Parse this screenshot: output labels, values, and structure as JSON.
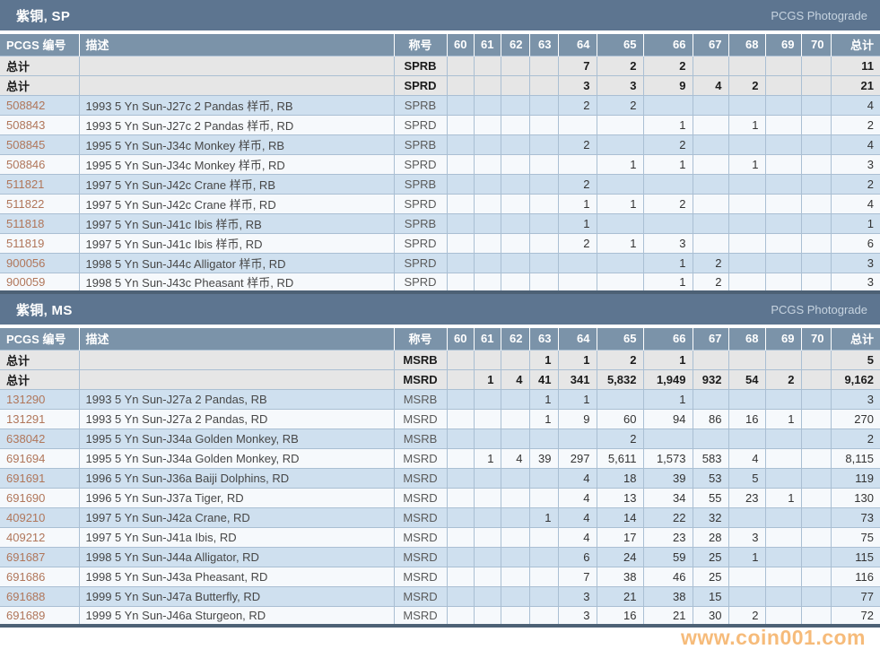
{
  "labels": {
    "photograde": "PCGS Photograde",
    "col_pcgs": "PCGS 编号",
    "col_desc": "描述",
    "col_designation": "称号",
    "col_total": "总计",
    "total_row": "总计"
  },
  "grade_columns": [
    "60",
    "61",
    "62",
    "63",
    "64",
    "65",
    "66",
    "67",
    "68",
    "69",
    "70"
  ],
  "watermark": {
    "text": "www.coin001.com",
    "color": "#f0922e"
  },
  "colors": {
    "band": "#5d7590",
    "header_row": "#7b93a9",
    "row_blue": "#cfe0ef",
    "row_white": "#f6f9fc",
    "total_row": "#e6e6e6",
    "cell_border": "#aabfd3",
    "link": "#b0765a",
    "bottom_bar": "#4d6175"
  },
  "sections": [
    {
      "title": "紫铜, SP",
      "totals": [
        {
          "designation": "SPRB",
          "counts": [
            "",
            "",
            "",
            "",
            "7",
            "2",
            "2",
            "",
            "",
            "",
            ""
          ],
          "total": "11"
        },
        {
          "designation": "SPRD",
          "counts": [
            "",
            "",
            "",
            "",
            "3",
            "3",
            "9",
            "4",
            "2",
            "",
            ""
          ],
          "total": "21"
        }
      ],
      "rows": [
        {
          "pcgs": "508842",
          "desc": "1993 5 Yn Sun-J27c 2 Pandas 样币, RB",
          "designation": "SPRB",
          "counts": [
            "",
            "",
            "",
            "",
            "2",
            "2",
            "",
            "",
            "",
            "",
            ""
          ],
          "total": "4"
        },
        {
          "pcgs": "508843",
          "desc": "1993 5 Yn Sun-J27c 2 Pandas 样币, RD",
          "designation": "SPRD",
          "counts": [
            "",
            "",
            "",
            "",
            "",
            "",
            "1",
            "",
            "1",
            "",
            ""
          ],
          "total": "2"
        },
        {
          "pcgs": "508845",
          "desc": "1995 5 Yn Sun-J34c Monkey 样币, RB",
          "designation": "SPRB",
          "counts": [
            "",
            "",
            "",
            "",
            "2",
            "",
            "2",
            "",
            "",
            "",
            ""
          ],
          "total": "4"
        },
        {
          "pcgs": "508846",
          "desc": "1995 5 Yn Sun-J34c Monkey 样币, RD",
          "designation": "SPRD",
          "counts": [
            "",
            "",
            "",
            "",
            "",
            "1",
            "1",
            "",
            "1",
            "",
            ""
          ],
          "total": "3"
        },
        {
          "pcgs": "511821",
          "desc": "1997 5 Yn Sun-J42c Crane 样币, RB",
          "designation": "SPRB",
          "counts": [
            "",
            "",
            "",
            "",
            "2",
            "",
            "",
            "",
            "",
            "",
            ""
          ],
          "total": "2"
        },
        {
          "pcgs": "511822",
          "desc": "1997 5 Yn Sun-J42c Crane 样币, RD",
          "designation": "SPRD",
          "counts": [
            "",
            "",
            "",
            "",
            "1",
            "1",
            "2",
            "",
            "",
            "",
            ""
          ],
          "total": "4"
        },
        {
          "pcgs": "511818",
          "desc": "1997 5 Yn Sun-J41c Ibis 样币, RB",
          "designation": "SPRB",
          "counts": [
            "",
            "",
            "",
            "",
            "1",
            "",
            "",
            "",
            "",
            "",
            ""
          ],
          "total": "1"
        },
        {
          "pcgs": "511819",
          "desc": "1997 5 Yn Sun-J41c Ibis 样币, RD",
          "designation": "SPRD",
          "counts": [
            "",
            "",
            "",
            "",
            "2",
            "1",
            "3",
            "",
            "",
            "",
            ""
          ],
          "total": "6"
        },
        {
          "pcgs": "900056",
          "desc": "1998 5 Yn Sun-J44c Alligator 样币, RD",
          "designation": "SPRD",
          "counts": [
            "",
            "",
            "",
            "",
            "",
            "",
            "1",
            "2",
            "",
            "",
            ""
          ],
          "total": "3"
        },
        {
          "pcgs": "900059",
          "desc": "1998 5 Yn Sun-J43c Pheasant 样币, RD",
          "designation": "SPRD",
          "counts": [
            "",
            "",
            "",
            "",
            "",
            "",
            "1",
            "2",
            "",
            "",
            ""
          ],
          "total": "3"
        }
      ]
    },
    {
      "title": "紫铜, MS",
      "totals": [
        {
          "designation": "MSRB",
          "counts": [
            "",
            "",
            "",
            "1",
            "1",
            "2",
            "1",
            "",
            "",
            "",
            ""
          ],
          "total": "5"
        },
        {
          "designation": "MSRD",
          "counts": [
            "",
            "1",
            "4",
            "41",
            "341",
            "5,832",
            "1,949",
            "932",
            "54",
            "2",
            ""
          ],
          "total": "9,162"
        }
      ],
      "rows": [
        {
          "pcgs": "131290",
          "desc": "1993 5 Yn Sun-J27a 2 Pandas, RB",
          "designation": "MSRB",
          "counts": [
            "",
            "",
            "",
            "1",
            "1",
            "",
            "1",
            "",
            "",
            "",
            ""
          ],
          "total": "3"
        },
        {
          "pcgs": "131291",
          "desc": "1993 5 Yn Sun-J27a 2 Pandas, RD",
          "designation": "MSRD",
          "counts": [
            "",
            "",
            "",
            "1",
            "9",
            "60",
            "94",
            "86",
            "16",
            "1",
            ""
          ],
          "total": "270"
        },
        {
          "pcgs": "638042",
          "desc": "1995 5 Yn Sun-J34a Golden Monkey, RB",
          "designation": "MSRB",
          "counts": [
            "",
            "",
            "",
            "",
            "",
            "2",
            "",
            "",
            "",
            "",
            ""
          ],
          "total": "2"
        },
        {
          "pcgs": "691694",
          "desc": "1995 5 Yn Sun-J34a Golden Monkey, RD",
          "designation": "MSRD",
          "counts": [
            "",
            "1",
            "4",
            "39",
            "297",
            "5,611",
            "1,573",
            "583",
            "4",
            "",
            ""
          ],
          "total": "8,115"
        },
        {
          "pcgs": "691691",
          "desc": "1996 5 Yn Sun-J36a Baiji Dolphins, RD",
          "designation": "MSRD",
          "counts": [
            "",
            "",
            "",
            "",
            "4",
            "18",
            "39",
            "53",
            "5",
            "",
            ""
          ],
          "total": "119"
        },
        {
          "pcgs": "691690",
          "desc": "1996 5 Yn Sun-J37a Tiger, RD",
          "designation": "MSRD",
          "counts": [
            "",
            "",
            "",
            "",
            "4",
            "13",
            "34",
            "55",
            "23",
            "1",
            ""
          ],
          "total": "130"
        },
        {
          "pcgs": "409210",
          "desc": "1997 5 Yn Sun-J42a Crane, RD",
          "designation": "MSRD",
          "counts": [
            "",
            "",
            "",
            "1",
            "4",
            "14",
            "22",
            "32",
            "",
            "",
            ""
          ],
          "total": "73"
        },
        {
          "pcgs": "409212",
          "desc": "1997 5 Yn Sun-J41a Ibis, RD",
          "designation": "MSRD",
          "counts": [
            "",
            "",
            "",
            "",
            "4",
            "17",
            "23",
            "28",
            "3",
            "",
            ""
          ],
          "total": "75"
        },
        {
          "pcgs": "691687",
          "desc": "1998 5 Yn Sun-J44a Alligator, RD",
          "designation": "MSRD",
          "counts": [
            "",
            "",
            "",
            "",
            "6",
            "24",
            "59",
            "25",
            "1",
            "",
            ""
          ],
          "total": "115"
        },
        {
          "pcgs": "691686",
          "desc": "1998 5 Yn Sun-J43a Pheasant, RD",
          "designation": "MSRD",
          "counts": [
            "",
            "",
            "",
            "",
            "7",
            "38",
            "46",
            "25",
            "",
            "",
            ""
          ],
          "total": "116"
        },
        {
          "pcgs": "691688",
          "desc": "1999 5 Yn Sun-J47a Butterfly, RD",
          "designation": "MSRD",
          "counts": [
            "",
            "",
            "",
            "",
            "3",
            "21",
            "38",
            "15",
            "",
            "",
            ""
          ],
          "total": "77"
        },
        {
          "pcgs": "691689",
          "desc": "1999 5 Yn Sun-J46a Sturgeon, RD",
          "designation": "MSRD",
          "counts": [
            "",
            "",
            "",
            "",
            "3",
            "16",
            "21",
            "30",
            "2",
            "",
            ""
          ],
          "total": "72"
        }
      ]
    }
  ]
}
